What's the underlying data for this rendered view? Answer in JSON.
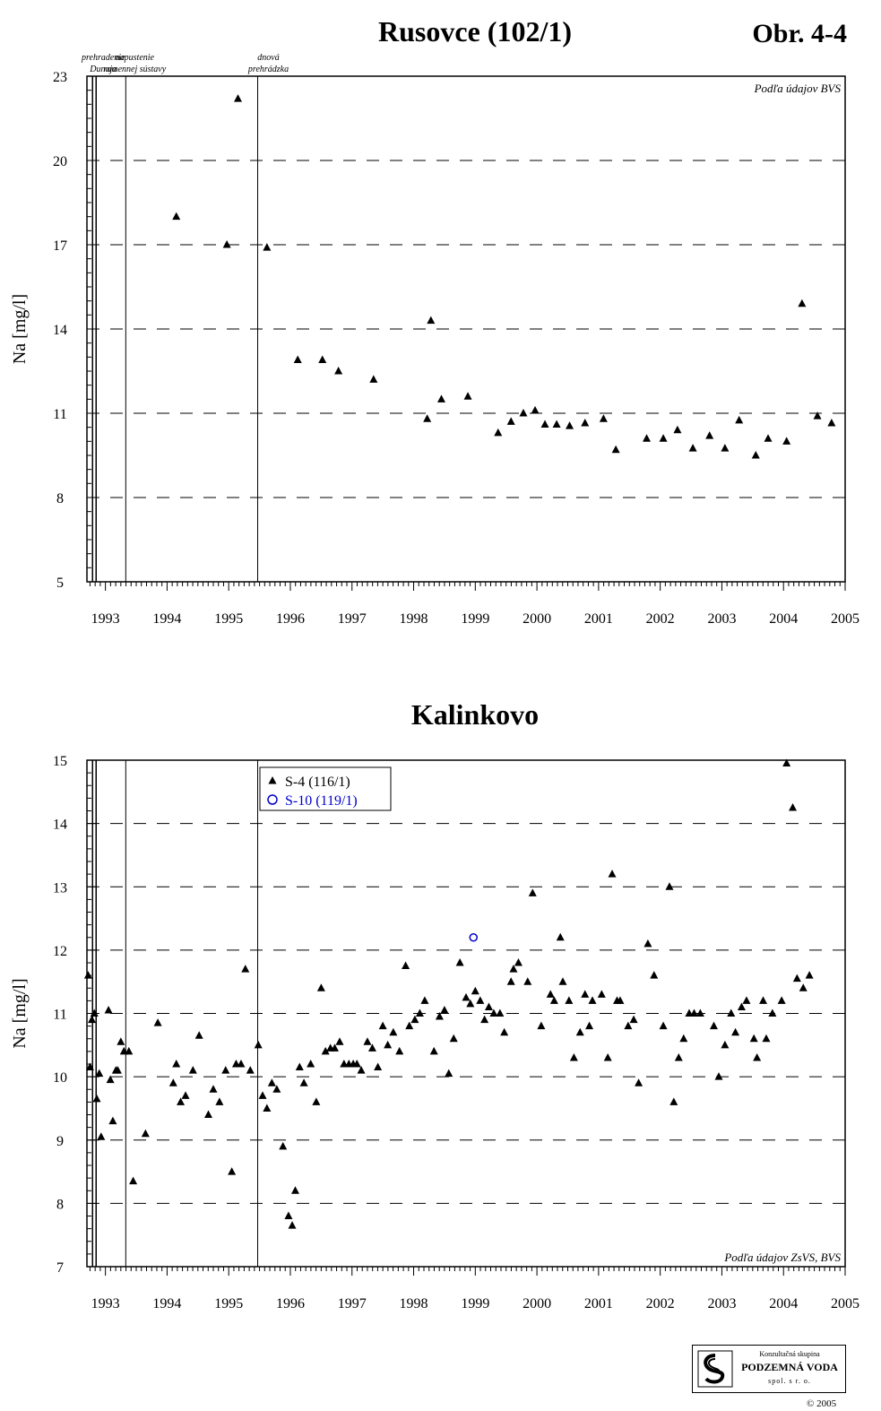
{
  "figure_label": "Obr. 4-4",
  "events": [
    {
      "line1": "prehradenie",
      "line2": "Dunaja",
      "date": 1992.82
    },
    {
      "line1": "napustenie",
      "line2": "ramennej sústavy",
      "date": 1993.33
    },
    {
      "line1": "dnová",
      "line2": "prehrádzka",
      "date": 1995.47
    }
  ],
  "chart_data": [
    {
      "type": "scatter",
      "title": "Rusovce (102/1)",
      "ylabel": "Na [mg/l]",
      "xlabel": "",
      "xlim": [
        1992.7,
        2005
      ],
      "ylim": [
        5,
        23
      ],
      "yticks": [
        5,
        8,
        11,
        14,
        17,
        20,
        23
      ],
      "xticks": [
        1993,
        1994,
        1995,
        1996,
        1997,
        1998,
        1999,
        2000,
        2001,
        2002,
        2003,
        2004,
        2005
      ],
      "grid": "dashed horizontal",
      "source_note": "Podľa údajov BVS",
      "series": [
        {
          "marker": "triangle",
          "color": "#000000",
          "points": [
            [
              1994.15,
              18.0
            ],
            [
              1994.97,
              17.0
            ],
            [
              1995.15,
              22.2
            ],
            [
              1995.62,
              16.9
            ],
            [
              1996.12,
              12.9
            ],
            [
              1996.52,
              12.9
            ],
            [
              1996.78,
              12.5
            ],
            [
              1997.35,
              12.2
            ],
            [
              1998.22,
              10.8
            ],
            [
              1998.28,
              14.3
            ],
            [
              1998.45,
              11.5
            ],
            [
              1998.88,
              11.6
            ],
            [
              1999.37,
              10.3
            ],
            [
              1999.58,
              10.7
            ],
            [
              1999.78,
              11.0
            ],
            [
              1999.97,
              11.1
            ],
            [
              2000.13,
              10.6
            ],
            [
              2000.32,
              10.6
            ],
            [
              2000.53,
              10.55
            ],
            [
              2000.78,
              10.65
            ],
            [
              2001.08,
              10.8
            ],
            [
              2001.28,
              9.7
            ],
            [
              2001.78,
              10.1
            ],
            [
              2002.05,
              10.1
            ],
            [
              2002.28,
              10.4
            ],
            [
              2002.53,
              9.75
            ],
            [
              2002.8,
              10.2
            ],
            [
              2003.05,
              9.75
            ],
            [
              2003.28,
              10.75
            ],
            [
              2003.55,
              9.5
            ],
            [
              2003.75,
              10.1
            ],
            [
              2004.05,
              10.0
            ],
            [
              2004.3,
              14.9
            ],
            [
              2004.55,
              10.9
            ],
            [
              2004.78,
              10.65
            ]
          ]
        }
      ]
    },
    {
      "type": "scatter",
      "title": "Kalinkovo",
      "ylabel": "Na [mg/l]",
      "xlabel": "",
      "xlim": [
        1992.7,
        2005
      ],
      "ylim": [
        7,
        15
      ],
      "yticks": [
        7,
        8,
        9,
        10,
        11,
        12,
        13,
        14,
        15
      ],
      "xticks": [
        1993,
        1994,
        1995,
        1996,
        1997,
        1998,
        1999,
        2000,
        2001,
        2002,
        2003,
        2004,
        2005
      ],
      "grid": "dashed horizontal",
      "legend_position": "top-left",
      "source_note": "Podľa údajov ZsVS, BVS",
      "series": [
        {
          "name": "S-4 (116/1)",
          "marker": "triangle",
          "color": "#000000",
          "points": [
            [
              1992.72,
              11.6
            ],
            [
              1992.75,
              10.15
            ],
            [
              1992.78,
              10.9
            ],
            [
              1992.82,
              11.0
            ],
            [
              1992.86,
              9.65
            ],
            [
              1992.9,
              10.05
            ],
            [
              1992.93,
              9.05
            ],
            [
              1993.05,
              11.05
            ],
            [
              1993.08,
              9.95
            ],
            [
              1993.12,
              9.3
            ],
            [
              1993.17,
              10.1
            ],
            [
              1993.2,
              10.1
            ],
            [
              1993.25,
              10.55
            ],
            [
              1993.3,
              10.4
            ],
            [
              1993.38,
              10.4
            ],
            [
              1993.45,
              8.35
            ],
            [
              1993.65,
              9.1
            ],
            [
              1993.85,
              10.85
            ],
            [
              1994.1,
              9.9
            ],
            [
              1994.15,
              10.2
            ],
            [
              1994.22,
              9.6
            ],
            [
              1994.3,
              9.7
            ],
            [
              1994.42,
              10.1
            ],
            [
              1994.52,
              10.65
            ],
            [
              1994.67,
              9.4
            ],
            [
              1994.75,
              9.8
            ],
            [
              1994.85,
              9.6
            ],
            [
              1994.95,
              10.1
            ],
            [
              1995.05,
              8.5
            ],
            [
              1995.12,
              10.2
            ],
            [
              1995.2,
              10.2
            ],
            [
              1995.27,
              11.7
            ],
            [
              1995.35,
              10.1
            ],
            [
              1995.48,
              10.5
            ],
            [
              1995.55,
              9.7
            ],
            [
              1995.62,
              9.5
            ],
            [
              1995.7,
              9.9
            ],
            [
              1995.78,
              9.8
            ],
            [
              1995.88,
              8.9
            ],
            [
              1995.97,
              7.8
            ],
            [
              1996.03,
              7.65
            ],
            [
              1996.08,
              8.2
            ],
            [
              1996.15,
              10.15
            ],
            [
              1996.22,
              9.9
            ],
            [
              1996.33,
              10.2
            ],
            [
              1996.42,
              9.6
            ],
            [
              1996.5,
              11.4
            ],
            [
              1996.57,
              10.4
            ],
            [
              1996.65,
              10.45
            ],
            [
              1996.72,
              10.45
            ],
            [
              1996.8,
              10.55
            ],
            [
              1996.87,
              10.2
            ],
            [
              1996.95,
              10.2
            ],
            [
              1997.02,
              10.2
            ],
            [
              1997.08,
              10.2
            ],
            [
              1997.15,
              10.1
            ],
            [
              1997.25,
              10.55
            ],
            [
              1997.33,
              10.45
            ],
            [
              1997.42,
              10.15
            ],
            [
              1997.5,
              10.8
            ],
            [
              1997.58,
              10.5
            ],
            [
              1997.67,
              10.7
            ],
            [
              1997.77,
              10.4
            ],
            [
              1997.87,
              11.75
            ],
            [
              1997.93,
              10.8
            ],
            [
              1998.02,
              10.9
            ],
            [
              1998.1,
              11.0
            ],
            [
              1998.18,
              11.2
            ],
            [
              1998.33,
              10.4
            ],
            [
              1998.42,
              10.95
            ],
            [
              1998.5,
              11.05
            ],
            [
              1998.57,
              10.05
            ],
            [
              1998.65,
              10.6
            ],
            [
              1998.75,
              11.8
            ],
            [
              1998.85,
              11.25
            ],
            [
              1998.92,
              11.15
            ],
            [
              1999.0,
              11.35
            ],
            [
              1999.08,
              11.2
            ],
            [
              1999.15,
              10.9
            ],
            [
              1999.22,
              11.1
            ],
            [
              1999.3,
              11.0
            ],
            [
              1999.4,
              11.0
            ],
            [
              1999.47,
              10.7
            ],
            [
              1999.58,
              11.5
            ],
            [
              1999.62,
              11.7
            ],
            [
              1999.7,
              11.8
            ],
            [
              1999.85,
              11.5
            ],
            [
              1999.93,
              12.9
            ],
            [
              2000.07,
              10.8
            ],
            [
              2000.22,
              11.3
            ],
            [
              2000.28,
              11.2
            ],
            [
              2000.38,
              12.2
            ],
            [
              2000.42,
              11.5
            ],
            [
              2000.52,
              11.2
            ],
            [
              2000.6,
              10.3
            ],
            [
              2000.7,
              10.7
            ],
            [
              2000.78,
              11.3
            ],
            [
              2000.85,
              10.8
            ],
            [
              2000.9,
              11.2
            ],
            [
              2001.05,
              11.3
            ],
            [
              2001.15,
              10.3
            ],
            [
              2001.22,
              13.2
            ],
            [
              2001.3,
              11.2
            ],
            [
              2001.35,
              11.2
            ],
            [
              2001.48,
              10.8
            ],
            [
              2001.57,
              10.9
            ],
            [
              2001.65,
              9.9
            ],
            [
              2001.8,
              12.1
            ],
            [
              2001.9,
              11.6
            ],
            [
              2002.05,
              10.8
            ],
            [
              2002.15,
              13.0
            ],
            [
              2002.22,
              9.6
            ],
            [
              2002.3,
              10.3
            ],
            [
              2002.38,
              10.6
            ],
            [
              2002.47,
              11.0
            ],
            [
              2002.55,
              11.0
            ],
            [
              2002.65,
              11.0
            ],
            [
              2002.87,
              10.8
            ],
            [
              2002.95,
              10.0
            ],
            [
              2003.05,
              10.5
            ],
            [
              2003.15,
              11.0
            ],
            [
              2003.22,
              10.7
            ],
            [
              2003.32,
              11.1
            ],
            [
              2003.4,
              11.2
            ],
            [
              2003.52,
              10.6
            ],
            [
              2003.57,
              10.3
            ],
            [
              2003.67,
              11.2
            ],
            [
              2003.72,
              10.6
            ],
            [
              2003.82,
              11.0
            ],
            [
              2003.97,
              11.2
            ],
            [
              2004.05,
              14.95
            ],
            [
              2004.15,
              14.25
            ],
            [
              2004.22,
              11.55
            ],
            [
              2004.32,
              11.4
            ],
            [
              2004.42,
              11.6
            ]
          ]
        },
        {
          "name": "S-10 (119/1)",
          "marker": "circle-open",
          "color": "#0000cc",
          "points": [
            [
              1998.97,
              12.2
            ]
          ]
        }
      ]
    }
  ],
  "logo": {
    "line1": "Konzultačná skupina",
    "line2": "PODZEMNÁ VODA",
    "line3": "spol. s r. o."
  },
  "copyright": "© 2005"
}
